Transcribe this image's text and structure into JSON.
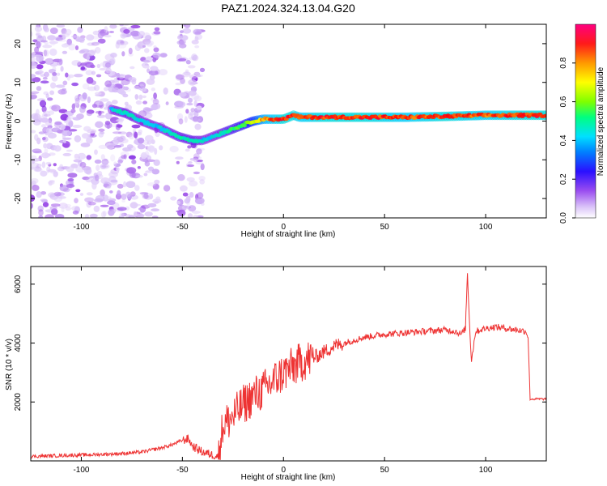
{
  "title": "PAZ1.2024.324.13.04.G20",
  "chart_data": [
    {
      "type": "heatmap",
      "xlabel": "Height of straight line (km)",
      "ylabel": "Frequency (Hz)",
      "xlim": [
        -125,
        130
      ],
      "ylim": [
        -25,
        25
      ],
      "xticks": [
        -100,
        -50,
        0,
        50,
        100
      ],
      "yticks": [
        -20,
        -10,
        0,
        10,
        20
      ],
      "grid": false,
      "colorbar": {
        "label": "Normalized spectral amplitude",
        "range": [
          0,
          1
        ],
        "ticks": [
          0.0,
          0.2,
          0.4,
          0.6,
          0.8
        ],
        "colormap": [
          "#ffffff",
          "#c9a8f5",
          "#8a2be2",
          "#1010ff",
          "#00c8ff",
          "#00ff80",
          "#7fff00",
          "#ffff00",
          "#ff8000",
          "#ff0000",
          "#ff0080"
        ]
      },
      "ridge": {
        "x": [
          -85,
          -78,
          -70,
          -60,
          -52,
          -45,
          -40,
          -35,
          -30,
          -25,
          -20,
          -15,
          -10,
          -5,
          0,
          5,
          8,
          20,
          40,
          60,
          80,
          100,
          120,
          130
        ],
        "frequency": [
          3,
          2,
          0,
          -2,
          -4,
          -5,
          -5,
          -4,
          -3,
          -2,
          -1,
          0,
          0.5,
          0.5,
          0.5,
          1.5,
          1,
          1,
          1,
          1,
          1.2,
          1.5,
          1.5,
          1.5
        ],
        "amplitude": [
          0.45,
          0.5,
          0.45,
          0.45,
          0.5,
          0.5,
          0.45,
          0.45,
          0.5,
          0.55,
          0.6,
          0.7,
          0.85,
          0.9,
          0.95,
          0.95,
          0.9,
          0.95,
          0.95,
          0.9,
          0.95,
          0.9,
          0.95,
          0.95
        ]
      },
      "noise_region_x": [
        -125,
        -40
      ],
      "noise_gap_x": [
        -62,
        -52
      ]
    },
    {
      "type": "line",
      "xlabel": "Height of straight line (km)",
      "ylabel": "SNR (10 * v/v)",
      "xlim": [
        -125,
        130
      ],
      "ylim": [
        0,
        6600
      ],
      "xticks": [
        -100,
        -50,
        0,
        50,
        100
      ],
      "yticks": [
        2000,
        4000,
        6000
      ],
      "grid": false,
      "color": "#ee3333",
      "x": [
        -125,
        -110,
        -100,
        -90,
        -80,
        -70,
        -60,
        -55,
        -50,
        -47,
        -45,
        -40,
        -35,
        -32,
        -30,
        -25,
        -20,
        -15,
        -10,
        -5,
        0,
        5,
        10,
        15,
        20,
        25,
        30,
        40,
        50,
        60,
        70,
        80,
        85,
        88,
        90,
        91,
        92,
        93,
        95,
        100,
        105,
        110,
        115,
        120,
        121,
        122,
        125,
        130
      ],
      "y": [
        150,
        180,
        200,
        220,
        250,
        300,
        450,
        550,
        700,
        750,
        500,
        300,
        200,
        150,
        1200,
        1500,
        1900,
        2200,
        2400,
        2700,
        3000,
        3200,
        3400,
        3500,
        3700,
        3900,
        4000,
        4200,
        4300,
        4350,
        4400,
        4450,
        4400,
        4300,
        4500,
        6400,
        4700,
        3400,
        4400,
        4500,
        4550,
        4500,
        4450,
        4400,
        4200,
        2100,
        2100,
        2100
      ]
    }
  ]
}
